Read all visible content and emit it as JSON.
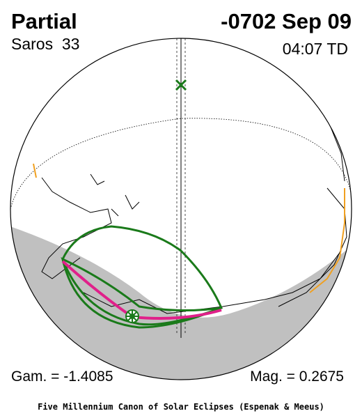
{
  "header": {
    "type": "Partial",
    "date": "-0702 Sep 09",
    "saros": "Saros  33",
    "time": "04:07 TD"
  },
  "footer": {
    "gamma": "Gam. = -1.4085",
    "magnitude": "Mag. = 0.2675",
    "credit": "Five Millennium Canon of Solar Eclipses (Espenak & Meeus)"
  }
}
